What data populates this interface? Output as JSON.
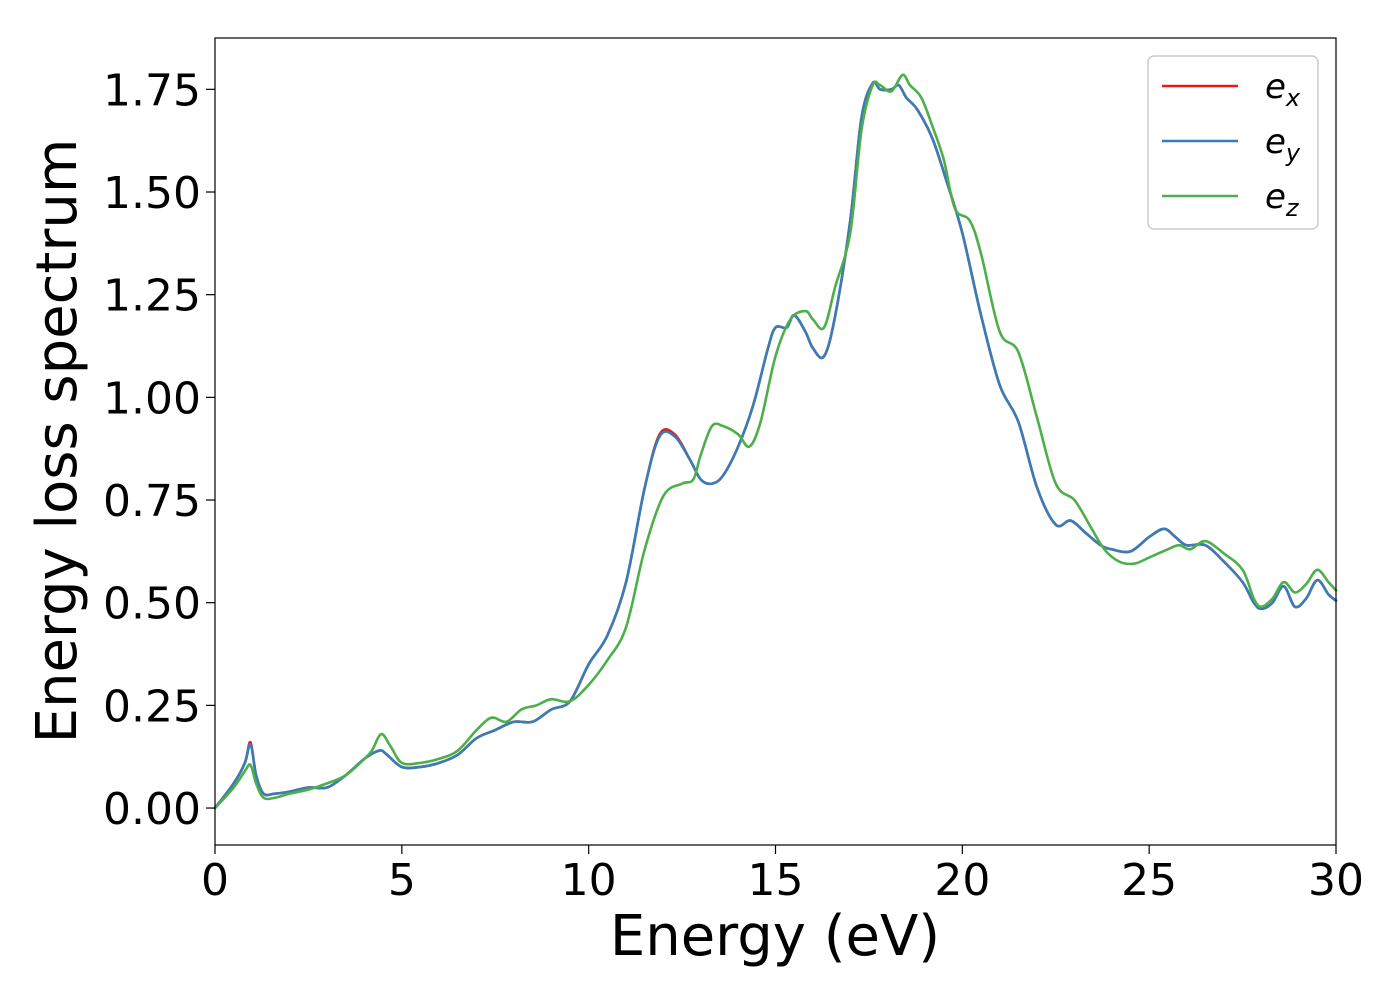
{
  "chart_data": {
    "type": "line",
    "title": "",
    "xlabel": "Energy (eV)",
    "ylabel": "Energy loss spectrum",
    "xlim": [
      0,
      30
    ],
    "ylim": [
      -0.09,
      1.875
    ],
    "xticks": [
      0,
      5,
      10,
      15,
      20,
      25,
      30
    ],
    "xtick_labels": [
      "0",
      "5",
      "10",
      "15",
      "20",
      "25",
      "30"
    ],
    "yticks": [
      0.0,
      0.25,
      0.5,
      0.75,
      1.0,
      1.25,
      1.5,
      1.75
    ],
    "ytick_labels": [
      "0.00",
      "0.25",
      "0.50",
      "0.75",
      "1.00",
      "1.25",
      "1.50",
      "1.75"
    ],
    "grid": false,
    "legend": "top-right",
    "series": [
      {
        "name": "e",
        "subscript": "x",
        "color": "#e41a1c",
        "x": [
          0,
          0.5,
          0.8,
          0.95,
          1.1,
          1.3,
          1.6,
          2.0,
          2.5,
          3.0,
          3.5,
          4.0,
          4.4,
          4.6,
          5.0,
          5.5,
          6.0,
          6.5,
          7.0,
          7.5,
          8.0,
          8.5,
          9.0,
          9.5,
          10.0,
          10.5,
          11.0,
          11.5,
          11.9,
          12.3,
          12.7,
          13.0,
          13.3,
          13.6,
          14.0,
          14.4,
          14.8,
          15.0,
          15.3,
          15.5,
          15.8,
          16.0,
          16.3,
          16.6,
          17.0,
          17.3,
          17.6,
          17.8,
          18.1,
          18.3,
          18.5,
          18.8,
          19.2,
          19.6,
          20.0,
          20.5,
          21.0,
          21.5,
          22.0,
          22.5,
          22.9,
          23.3,
          23.7,
          24.0,
          24.5,
          25.0,
          25.4,
          25.7,
          26.0,
          26.5,
          27.0,
          27.5,
          27.8,
          28.0,
          28.3,
          28.6,
          28.9,
          29.2,
          29.5,
          29.8,
          30.0
        ],
        "y": [
          0.0,
          0.06,
          0.11,
          0.16,
          0.08,
          0.035,
          0.035,
          0.04,
          0.05,
          0.05,
          0.08,
          0.12,
          0.14,
          0.13,
          0.1,
          0.1,
          0.11,
          0.13,
          0.17,
          0.19,
          0.21,
          0.21,
          0.24,
          0.26,
          0.35,
          0.42,
          0.55,
          0.78,
          0.91,
          0.91,
          0.85,
          0.8,
          0.79,
          0.81,
          0.88,
          0.98,
          1.12,
          1.17,
          1.17,
          1.2,
          1.16,
          1.12,
          1.1,
          1.2,
          1.43,
          1.68,
          1.765,
          1.75,
          1.75,
          1.76,
          1.73,
          1.7,
          1.63,
          1.52,
          1.4,
          1.2,
          1.03,
          0.94,
          0.78,
          0.69,
          0.7,
          0.67,
          0.64,
          0.63,
          0.625,
          0.66,
          0.68,
          0.66,
          0.64,
          0.64,
          0.6,
          0.55,
          0.5,
          0.485,
          0.5,
          0.54,
          0.49,
          0.51,
          0.555,
          0.52,
          0.505
        ]
      },
      {
        "name": "e",
        "subscript": "y",
        "color": "#377eb8",
        "x": [
          0,
          0.5,
          0.8,
          0.95,
          1.1,
          1.3,
          1.6,
          2.0,
          2.5,
          3.0,
          3.5,
          4.0,
          4.4,
          4.6,
          5.0,
          5.5,
          6.0,
          6.5,
          7.0,
          7.5,
          8.0,
          8.5,
          9.0,
          9.5,
          10.0,
          10.5,
          11.0,
          11.5,
          11.9,
          12.3,
          12.7,
          13.0,
          13.3,
          13.6,
          14.0,
          14.4,
          14.8,
          15.0,
          15.3,
          15.5,
          15.8,
          16.0,
          16.3,
          16.6,
          17.0,
          17.3,
          17.6,
          17.8,
          18.1,
          18.3,
          18.5,
          18.8,
          19.2,
          19.6,
          20.0,
          20.5,
          21.0,
          21.5,
          22.0,
          22.5,
          22.9,
          23.3,
          23.7,
          24.0,
          24.5,
          25.0,
          25.4,
          25.7,
          26.0,
          26.5,
          27.0,
          27.5,
          27.8,
          28.0,
          28.3,
          28.6,
          28.9,
          29.2,
          29.5,
          29.8,
          30.0
        ],
        "y": [
          0.0,
          0.06,
          0.11,
          0.155,
          0.08,
          0.035,
          0.035,
          0.04,
          0.05,
          0.05,
          0.08,
          0.12,
          0.14,
          0.13,
          0.1,
          0.1,
          0.11,
          0.13,
          0.17,
          0.19,
          0.21,
          0.21,
          0.24,
          0.26,
          0.35,
          0.42,
          0.55,
          0.78,
          0.905,
          0.905,
          0.85,
          0.8,
          0.79,
          0.81,
          0.88,
          0.98,
          1.12,
          1.17,
          1.17,
          1.2,
          1.16,
          1.12,
          1.1,
          1.2,
          1.43,
          1.68,
          1.765,
          1.75,
          1.75,
          1.76,
          1.73,
          1.7,
          1.63,
          1.52,
          1.4,
          1.2,
          1.03,
          0.94,
          0.78,
          0.69,
          0.7,
          0.67,
          0.64,
          0.63,
          0.625,
          0.66,
          0.68,
          0.66,
          0.64,
          0.64,
          0.6,
          0.55,
          0.5,
          0.485,
          0.5,
          0.54,
          0.49,
          0.51,
          0.555,
          0.52,
          0.505
        ]
      },
      {
        "name": "e",
        "subscript": "z",
        "color": "#4daf4a",
        "x": [
          0,
          0.5,
          0.8,
          0.95,
          1.1,
          1.3,
          1.6,
          2.0,
          2.5,
          3.0,
          3.5,
          4.0,
          4.2,
          4.45,
          4.7,
          5.0,
          5.5,
          6.0,
          6.5,
          7.0,
          7.4,
          7.8,
          8.2,
          8.6,
          9.0,
          9.5,
          10.0,
          10.5,
          11.0,
          11.5,
          12.0,
          12.5,
          12.8,
          13.0,
          13.3,
          13.6,
          14.0,
          14.3,
          14.6,
          15.0,
          15.4,
          15.8,
          16.0,
          16.3,
          16.6,
          17.0,
          17.3,
          17.6,
          17.8,
          18.1,
          18.4,
          18.6,
          18.9,
          19.2,
          19.5,
          19.8,
          20.2,
          20.5,
          21.0,
          21.5,
          22.0,
          22.5,
          23.0,
          23.4,
          23.8,
          24.2,
          24.6,
          25.0,
          25.5,
          25.8,
          26.1,
          26.5,
          27.0,
          27.5,
          27.8,
          28.0,
          28.3,
          28.6,
          28.9,
          29.2,
          29.5,
          29.8,
          30.0
        ],
        "y": [
          0.0,
          0.05,
          0.09,
          0.105,
          0.06,
          0.025,
          0.025,
          0.035,
          0.045,
          0.06,
          0.08,
          0.12,
          0.14,
          0.18,
          0.15,
          0.11,
          0.11,
          0.12,
          0.14,
          0.19,
          0.22,
          0.21,
          0.24,
          0.25,
          0.265,
          0.26,
          0.3,
          0.36,
          0.44,
          0.63,
          0.76,
          0.79,
          0.8,
          0.86,
          0.93,
          0.93,
          0.91,
          0.88,
          0.94,
          1.1,
          1.19,
          1.21,
          1.19,
          1.17,
          1.27,
          1.4,
          1.65,
          1.76,
          1.76,
          1.745,
          1.785,
          1.76,
          1.73,
          1.66,
          1.58,
          1.46,
          1.43,
          1.35,
          1.16,
          1.11,
          0.95,
          0.79,
          0.75,
          0.69,
          0.63,
          0.6,
          0.595,
          0.61,
          0.63,
          0.64,
          0.63,
          0.65,
          0.62,
          0.58,
          0.51,
          0.49,
          0.51,
          0.55,
          0.525,
          0.545,
          0.58,
          0.55,
          0.53
        ]
      }
    ]
  }
}
